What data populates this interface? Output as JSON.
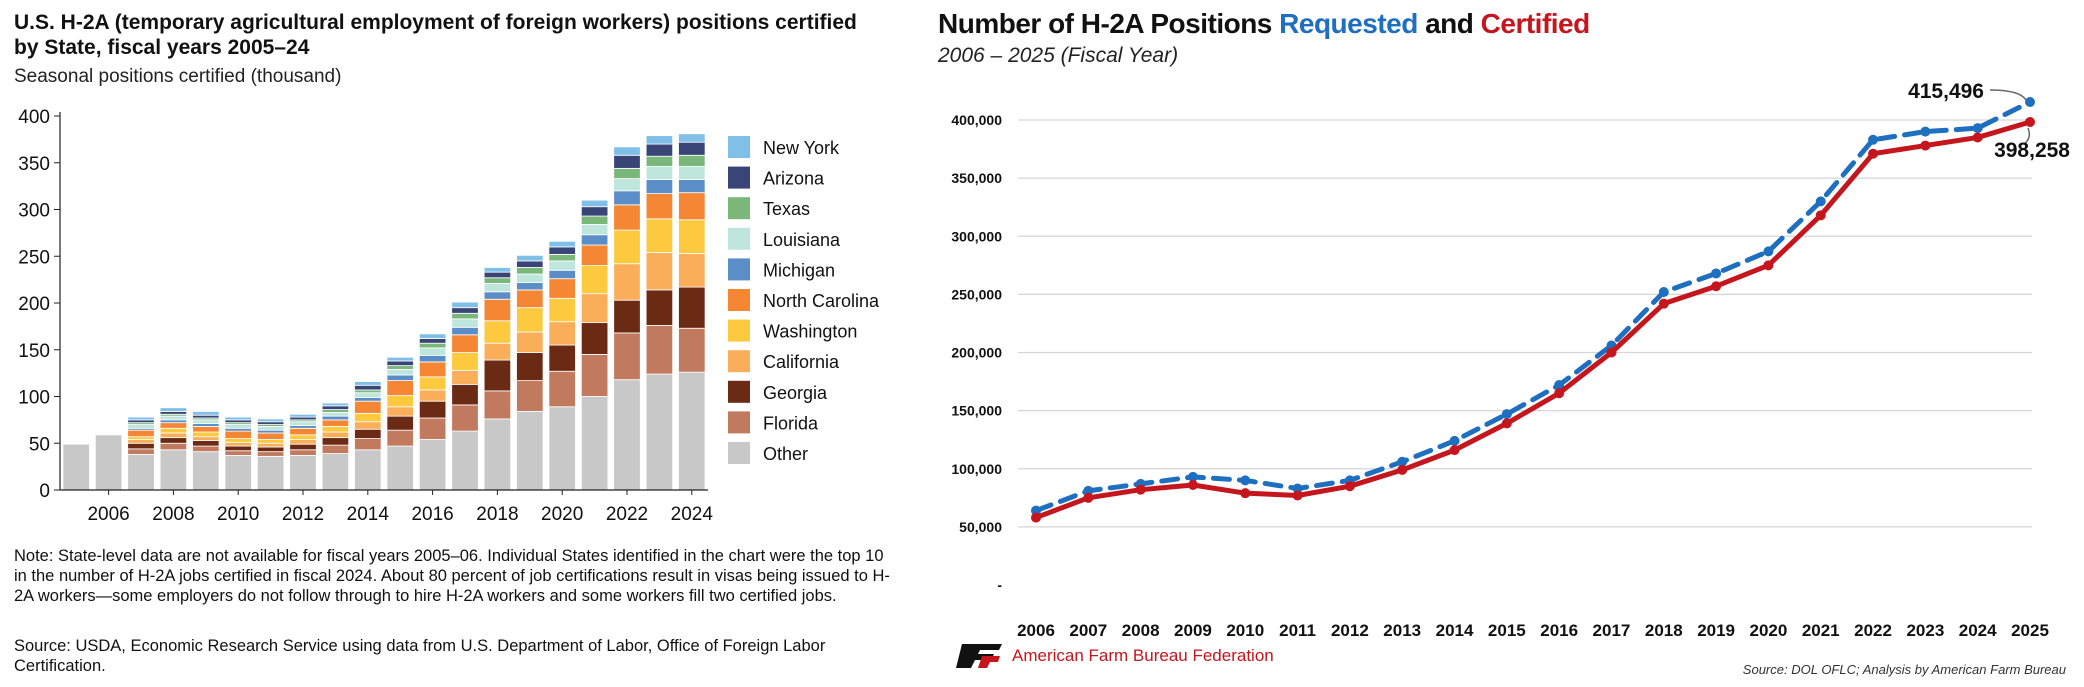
{
  "left": {
    "title": "U.S. H-2A (temporary agricultural employment of foreign workers) positions certified by State, fiscal years 2005–24",
    "subtitle": "Seasonal positions certified (thousand)",
    "note": "Note: State-level data are not available for fiscal years 2005–06. Individual States identified in the chart were the top 10 in the number of H-2A jobs certified in fiscal 2024. About 80 percent of job certifications result in visas being issued to H-2A workers—some employers do not follow through to hire H-2A workers and some workers fill two certified jobs.",
    "source": "Source: USDA, Economic Research Service using data from U.S. Department of Labor, Office of Foreign Labor Certification."
  },
  "right": {
    "title_prefix": "Number of H-2A Positions",
    "title_requested": "Requested",
    "title_and": "and",
    "title_certified": "Certified",
    "subtitle": "2006 – 2025 (Fiscal Year)",
    "org": "American Farm Bureau Federation",
    "source": "Source: DOL OFLC; Analysis by American Farm Bureau"
  },
  "colors": {
    "other": "#c8c8c8",
    "florida": "#c17a5e",
    "georgia": "#6b2a13",
    "california": "#fbae5a",
    "washington": "#fdc93f",
    "north_carolina": "#f58634",
    "michigan": "#5b8ec9",
    "louisiana": "#bfe6dd",
    "texas": "#7ab87a",
    "arizona": "#3a4577",
    "new_york": "#80c0e8",
    "requested": "#1f6fc0",
    "certified": "#c4161c"
  },
  "chart_data": [
    {
      "type": "bar",
      "stacked": true,
      "title": "U.S. H-2A (temporary agricultural employment of foreign workers) positions certified by State, fiscal years 2005–24",
      "ylabel": "Seasonal positions certified (thousand)",
      "ylim": [
        0,
        400
      ],
      "yticks": [
        0,
        50,
        100,
        150,
        200,
        250,
        300,
        350,
        400
      ],
      "categories": [
        "2005",
        "2006",
        "2007",
        "2008",
        "2009",
        "2010",
        "2011",
        "2012",
        "2013",
        "2014",
        "2015",
        "2016",
        "2017",
        "2018",
        "2019",
        "2020",
        "2021",
        "2022",
        "2023",
        "2024"
      ],
      "xtick_labels": [
        "2006",
        "2008",
        "2010",
        "2012",
        "2014",
        "2016",
        "2018",
        "2020",
        "2022",
        "2024"
      ],
      "legend_position": "right",
      "series": [
        {
          "name": "Other",
          "color_key": "other",
          "values": [
            49,
            59,
            38,
            43,
            41,
            37,
            36,
            37,
            39,
            43,
            47,
            54,
            63,
            76,
            84,
            89,
            100,
            118,
            124,
            126
          ]
        },
        {
          "name": "Florida",
          "color_key": "florida",
          "values": [
            0,
            0,
            6,
            7,
            6,
            5,
            5,
            6,
            9,
            12,
            17,
            23,
            28,
            30,
            33,
            38,
            45,
            50,
            52,
            47
          ]
        },
        {
          "name": "Georgia",
          "color_key": "georgia",
          "values": [
            0,
            0,
            6,
            6,
            6,
            5,
            5,
            6,
            8,
            10,
            15,
            18,
            22,
            33,
            30,
            28,
            34,
            35,
            38,
            44
          ]
        },
        {
          "name": "California",
          "color_key": "california",
          "values": [
            0,
            0,
            4,
            5,
            4,
            4,
            4,
            5,
            6,
            8,
            10,
            12,
            15,
            18,
            22,
            25,
            31,
            39,
            40,
            36
          ]
        },
        {
          "name": "Washington",
          "color_key": "washington",
          "values": [
            0,
            0,
            3,
            5,
            5,
            4,
            4,
            5,
            6,
            9,
            12,
            14,
            19,
            24,
            26,
            25,
            30,
            36,
            36,
            36
          ]
        },
        {
          "name": "North Carolina",
          "color_key": "north_carolina",
          "values": [
            0,
            0,
            7,
            6,
            6,
            8,
            7,
            7,
            7,
            13,
            16,
            16,
            19,
            23,
            19,
            21,
            22,
            27,
            27,
            29
          ]
        },
        {
          "name": "Michigan",
          "color_key": "michigan",
          "values": [
            0,
            0,
            2,
            3,
            3,
            3,
            3,
            3,
            4,
            4,
            6,
            7,
            8,
            8,
            8,
            9,
            11,
            15,
            15,
            14
          ]
        },
        {
          "name": "Louisiana",
          "color_key": "louisiana",
          "values": [
            0,
            0,
            4,
            4,
            4,
            4,
            4,
            4,
            4,
            5,
            6,
            8,
            9,
            9,
            9,
            10,
            11,
            13,
            14,
            14
          ]
        },
        {
          "name": "Texas",
          "color_key": "texas",
          "values": [
            0,
            0,
            2,
            2,
            2,
            2,
            2,
            2,
            3,
            3,
            4,
            5,
            6,
            6,
            7,
            7,
            9,
            11,
            11,
            12
          ]
        },
        {
          "name": "Arizona",
          "color_key": "arizona",
          "values": [
            0,
            0,
            3,
            3,
            3,
            3,
            3,
            3,
            4,
            5,
            5,
            5,
            6,
            6,
            7,
            8,
            10,
            14,
            13,
            14
          ]
        },
        {
          "name": "New York",
          "color_key": "new_york",
          "values": [
            0,
            0,
            3,
            4,
            4,
            3,
            3,
            3,
            3,
            4,
            4,
            5,
            6,
            5,
            6,
            6,
            7,
            9,
            9,
            9
          ]
        }
      ]
    },
    {
      "type": "line",
      "title": "Number of H-2A Positions Requested and Certified",
      "subtitle": "2006 – 2025 (Fiscal Year)",
      "ylim": [
        0,
        400000
      ],
      "yticks": [
        0,
        50000,
        100000,
        150000,
        200000,
        250000,
        300000,
        350000,
        400000
      ],
      "ytick_labels": [
        "-",
        "50,000",
        "100,000",
        "150,000",
        "200,000",
        "250,000",
        "300,000",
        "350,000",
        "400,000"
      ],
      "x": [
        "2006",
        "2007",
        "2008",
        "2009",
        "2010",
        "2011",
        "2012",
        "2013",
        "2014",
        "2015",
        "2016",
        "2017",
        "2018",
        "2019",
        "2020",
        "2021",
        "2022",
        "2023",
        "2024",
        "2025"
      ],
      "grid": true,
      "series": [
        {
          "name": "Requested",
          "color_key": "requested",
          "style": "dashed",
          "values": [
            64000,
            81000,
            87000,
            93000,
            90000,
            83000,
            90000,
            106000,
            124000,
            147000,
            172000,
            206000,
            252000,
            268000,
            287000,
            330000,
            383000,
            390000,
            393000,
            415496
          ]
        },
        {
          "name": "Certified",
          "color_key": "certified",
          "style": "solid",
          "values": [
            58000,
            75000,
            82000,
            86000,
            79000,
            77000,
            85000,
            99000,
            116000,
            139000,
            165000,
            200000,
            242000,
            257000,
            275000,
            318000,
            371000,
            378000,
            385000,
            398258
          ]
        }
      ],
      "annotations": [
        {
          "series": "Requested",
          "x": "2025",
          "text": "415,496"
        },
        {
          "series": "Certified",
          "x": "2025",
          "text": "398,258"
        }
      ]
    }
  ]
}
